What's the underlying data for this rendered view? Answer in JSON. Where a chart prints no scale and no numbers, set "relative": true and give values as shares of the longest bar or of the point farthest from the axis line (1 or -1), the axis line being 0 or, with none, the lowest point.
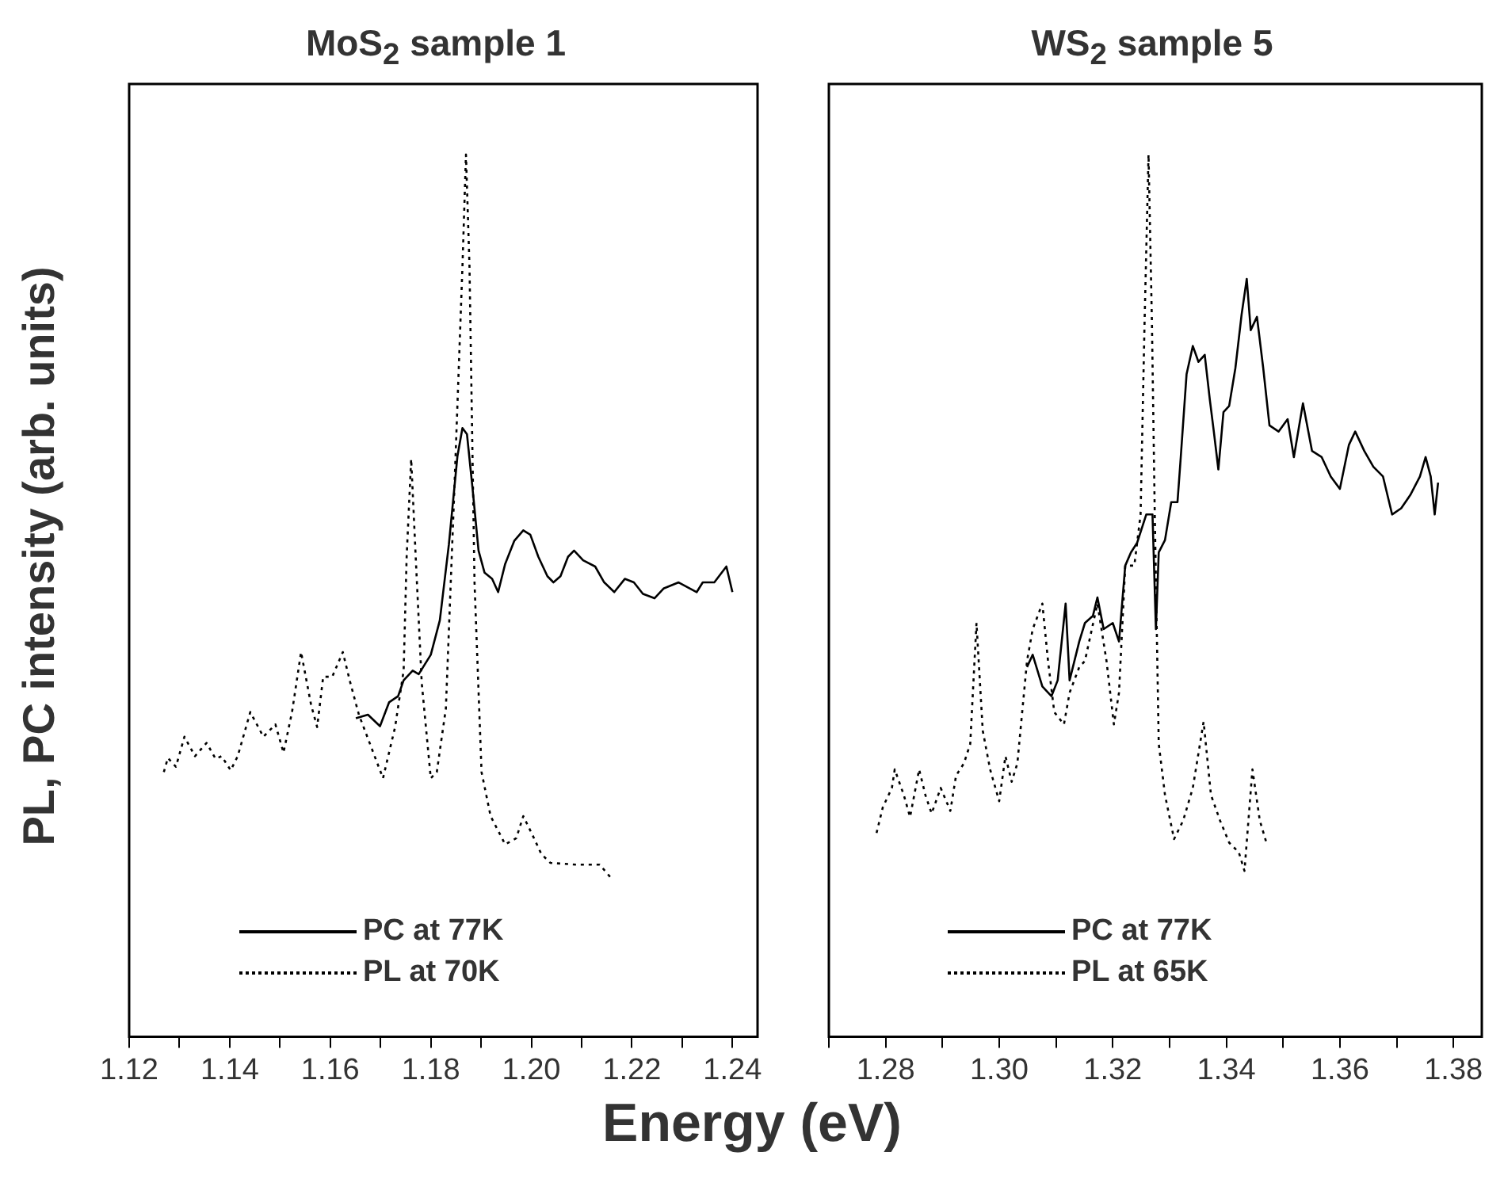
{
  "chart_data": [
    {
      "type": "line",
      "title": "MoS$_{2}$ sample 1",
      "xlabel": "Energy (eV)",
      "ylabel": "PL, PC intensity (arb. units)",
      "relative": true,
      "marker": "none",
      "legend": "bottom left",
      "grid": false,
      "xlim": [
        1.12,
        1.245
      ],
      "xticks": [
        {
          "value": 1.12,
          "label": "1.12"
        },
        {
          "value": 1.13,
          "label": null
        },
        {
          "value": 1.14,
          "label": "1.14"
        },
        {
          "value": 1.15,
          "label": null
        },
        {
          "value": 1.16,
          "label": "1.16"
        },
        {
          "value": 1.17,
          "label": null
        },
        {
          "value": 1.18,
          "label": "1.18"
        },
        {
          "value": 1.19,
          "label": null
        },
        {
          "value": 1.2,
          "label": "1.20"
        },
        {
          "value": 1.21,
          "label": null
        },
        {
          "value": 1.22,
          "label": "1.22"
        },
        {
          "value": 1.23,
          "label": null
        },
        {
          "value": 1.24,
          "label": "1.24"
        }
      ],
      "series": [
        {
          "name": "PC at 77K",
          "color": "#000000",
          "line_style": "solid",
          "x": [
            1.1651,
            1.1675,
            1.1699,
            1.1717,
            1.1735,
            1.1746,
            1.1764,
            1.1776,
            1.18,
            1.1818,
            1.1836,
            1.1853,
            1.1863,
            1.1872,
            1.1883,
            1.1895,
            1.1907,
            1.1922,
            1.1934,
            1.1948,
            1.1966,
            1.1984,
            1.1998,
            1.2014,
            1.2032,
            1.2044,
            1.2058,
            1.2073,
            1.2085,
            1.2103,
            1.2127,
            1.2145,
            1.2165,
            1.2186,
            1.2204,
            1.2222,
            1.2245,
            1.2263,
            1.2293,
            1.2329,
            1.2341,
            1.2364,
            1.2388,
            1.24
          ],
          "values": [
            0.361,
            0.365,
            0.352,
            0.379,
            0.386,
            0.404,
            0.415,
            0.411,
            0.433,
            0.472,
            0.558,
            0.658,
            0.69,
            0.683,
            0.622,
            0.551,
            0.526,
            0.519,
            0.504,
            0.536,
            0.562,
            0.574,
            0.569,
            0.544,
            0.522,
            0.515,
            0.522,
            0.544,
            0.551,
            0.54,
            0.533,
            0.515,
            0.504,
            0.519,
            0.515,
            0.502,
            0.497,
            0.508,
            0.515,
            0.504,
            0.515,
            0.515,
            0.533,
            0.504
          ]
        },
        {
          "name": "PL at 70K",
          "color": "#000000",
          "line_style": "dotted",
          "x": [
            1.1269,
            1.1277,
            1.1293,
            1.131,
            1.1331,
            1.1354,
            1.1372,
            1.1384,
            1.1402,
            1.1416,
            1.1441,
            1.1467,
            1.1491,
            1.1507,
            1.1524,
            1.1542,
            1.1562,
            1.1574,
            1.1586,
            1.1604,
            1.1625,
            1.164,
            1.1657,
            1.1681,
            1.1705,
            1.1729,
            1.1746,
            1.1752,
            1.1761,
            1.177,
            1.1782,
            1.18,
            1.1812,
            1.183,
            1.1847,
            1.1863,
            1.187,
            1.1877,
            1.1887,
            1.1901,
            1.1919,
            1.1948,
            1.197,
            1.1984,
            1.2002,
            1.202,
            1.2038,
            1.2091,
            1.2136,
            1.216
          ],
          "values": [
            0.3,
            0.316,
            0.306,
            0.34,
            0.318,
            0.333,
            0.315,
            0.318,
            0.302,
            0.318,
            0.368,
            0.34,
            0.354,
            0.322,
            0.368,
            0.436,
            0.376,
            0.351,
            0.408,
            0.408,
            0.436,
            0.401,
            0.365,
            0.329,
            0.293,
            0.351,
            0.415,
            0.544,
            0.655,
            0.544,
            0.401,
            0.293,
            0.3,
            0.372,
            0.622,
            0.873,
            1,
            0.873,
            0.515,
            0.3,
            0.25,
            0.218,
            0.225,
            0.25,
            0.229,
            0.207,
            0.197,
            0.195,
            0.195,
            0.179
          ]
        }
      ]
    },
    {
      "type": "line",
      "title": "WS$_{2}$ sample 5",
      "relative": true,
      "marker": "none",
      "legend": "bottom left",
      "grid": false,
      "xlim": [
        1.27,
        1.385
      ],
      "xticks": [
        {
          "value": 1.27,
          "label": null
        },
        {
          "value": 1.28,
          "label": "1.28"
        },
        {
          "value": 1.29,
          "label": null
        },
        {
          "value": 1.3,
          "label": "1.30"
        },
        {
          "value": 1.31,
          "label": null
        },
        {
          "value": 1.32,
          "label": "1.32"
        },
        {
          "value": 1.33,
          "label": null
        },
        {
          "value": 1.34,
          "label": "1.34"
        },
        {
          "value": 1.35,
          "label": null
        },
        {
          "value": 1.36,
          "label": "1.36"
        },
        {
          "value": 1.37,
          "label": null
        },
        {
          "value": 1.38,
          "label": "1.38"
        }
      ],
      "series": [
        {
          "name": "PC at 77K",
          "color": "#000000",
          "line_style": "solid",
          "x": [
            1.3049,
            1.3059,
            1.3076,
            1.3092,
            1.3103,
            1.3117,
            1.3124,
            1.3141,
            1.3151,
            1.3165,
            1.3173,
            1.3184,
            1.32,
            1.3211,
            1.3222,
            1.3232,
            1.3243,
            1.3259,
            1.327,
            1.3276,
            1.3281,
            1.3292,
            1.3303,
            1.3314,
            1.3319,
            1.333,
            1.3341,
            1.3351,
            1.3362,
            1.3371,
            1.3378,
            1.3386,
            1.3395,
            1.3405,
            1.3416,
            1.3427,
            1.3436,
            1.3443,
            1.3454,
            1.3465,
            1.3476,
            1.3492,
            1.3508,
            1.3519,
            1.3535,
            1.3551,
            1.3568,
            1.3584,
            1.36,
            1.3616,
            1.3627,
            1.3643,
            1.3659,
            1.3676,
            1.3692,
            1.3708,
            1.3724,
            1.3741,
            1.3751,
            1.376,
            1.3767,
            1.3773
          ],
          "values": [
            0.419,
            0.433,
            0.397,
            0.386,
            0.404,
            0.491,
            0.404,
            0.448,
            0.469,
            0.477,
            0.498,
            0.462,
            0.469,
            0.448,
            0.534,
            0.549,
            0.56,
            0.592,
            0.592,
            0.462,
            0.549,
            0.563,
            0.606,
            0.606,
            0.65,
            0.751,
            0.783,
            0.765,
            0.773,
            0.722,
            0.686,
            0.643,
            0.708,
            0.715,
            0.758,
            0.819,
            0.859,
            0.801,
            0.816,
            0.758,
            0.693,
            0.686,
            0.7,
            0.657,
            0.718,
            0.664,
            0.657,
            0.635,
            0.621,
            0.671,
            0.686,
            0.664,
            0.646,
            0.635,
            0.592,
            0.599,
            0.614,
            0.635,
            0.657,
            0.635,
            0.592,
            0.628
          ]
        },
        {
          "name": "PL at 65K",
          "color": "#000000",
          "line_style": "dotted",
          "x": [
            1.2784,
            1.2795,
            1.2811,
            1.2816,
            1.2832,
            1.2843,
            1.2859,
            1.287,
            1.2881,
            1.2897,
            1.2914,
            1.2924,
            1.2938,
            1.2949,
            1.296,
            1.2971,
            1.2984,
            1.3,
            1.3011,
            1.3022,
            1.3032,
            1.3049,
            1.3059,
            1.3076,
            1.3086,
            1.3097,
            1.3114,
            1.3124,
            1.3141,
            1.3151,
            1.3173,
            1.3189,
            1.3202,
            1.3211,
            1.3222,
            1.3238,
            1.3249,
            1.3256,
            1.3263,
            1.3269,
            1.3274,
            1.3281,
            1.3292,
            1.3308,
            1.3324,
            1.3341,
            1.336,
            1.3373,
            1.3389,
            1.3405,
            1.3422,
            1.3432,
            1.3446,
            1.3459,
            1.3472
          ],
          "values": [
            0.231,
            0.26,
            0.282,
            0.303,
            0.274,
            0.249,
            0.303,
            0.274,
            0.253,
            0.282,
            0.256,
            0.296,
            0.31,
            0.332,
            0.469,
            0.347,
            0.303,
            0.267,
            0.318,
            0.289,
            0.31,
            0.426,
            0.462,
            0.491,
            0.426,
            0.368,
            0.354,
            0.39,
            0.419,
            0.426,
            0.491,
            0.426,
            0.354,
            0.39,
            0.534,
            0.534,
            0.592,
            0.809,
            1,
            0.809,
            0.592,
            0.332,
            0.274,
            0.224,
            0.245,
            0.282,
            0.357,
            0.274,
            0.245,
            0.22,
            0.209,
            0.188,
            0.303,
            0.245,
            0.217
          ]
        }
      ]
    }
  ]
}
